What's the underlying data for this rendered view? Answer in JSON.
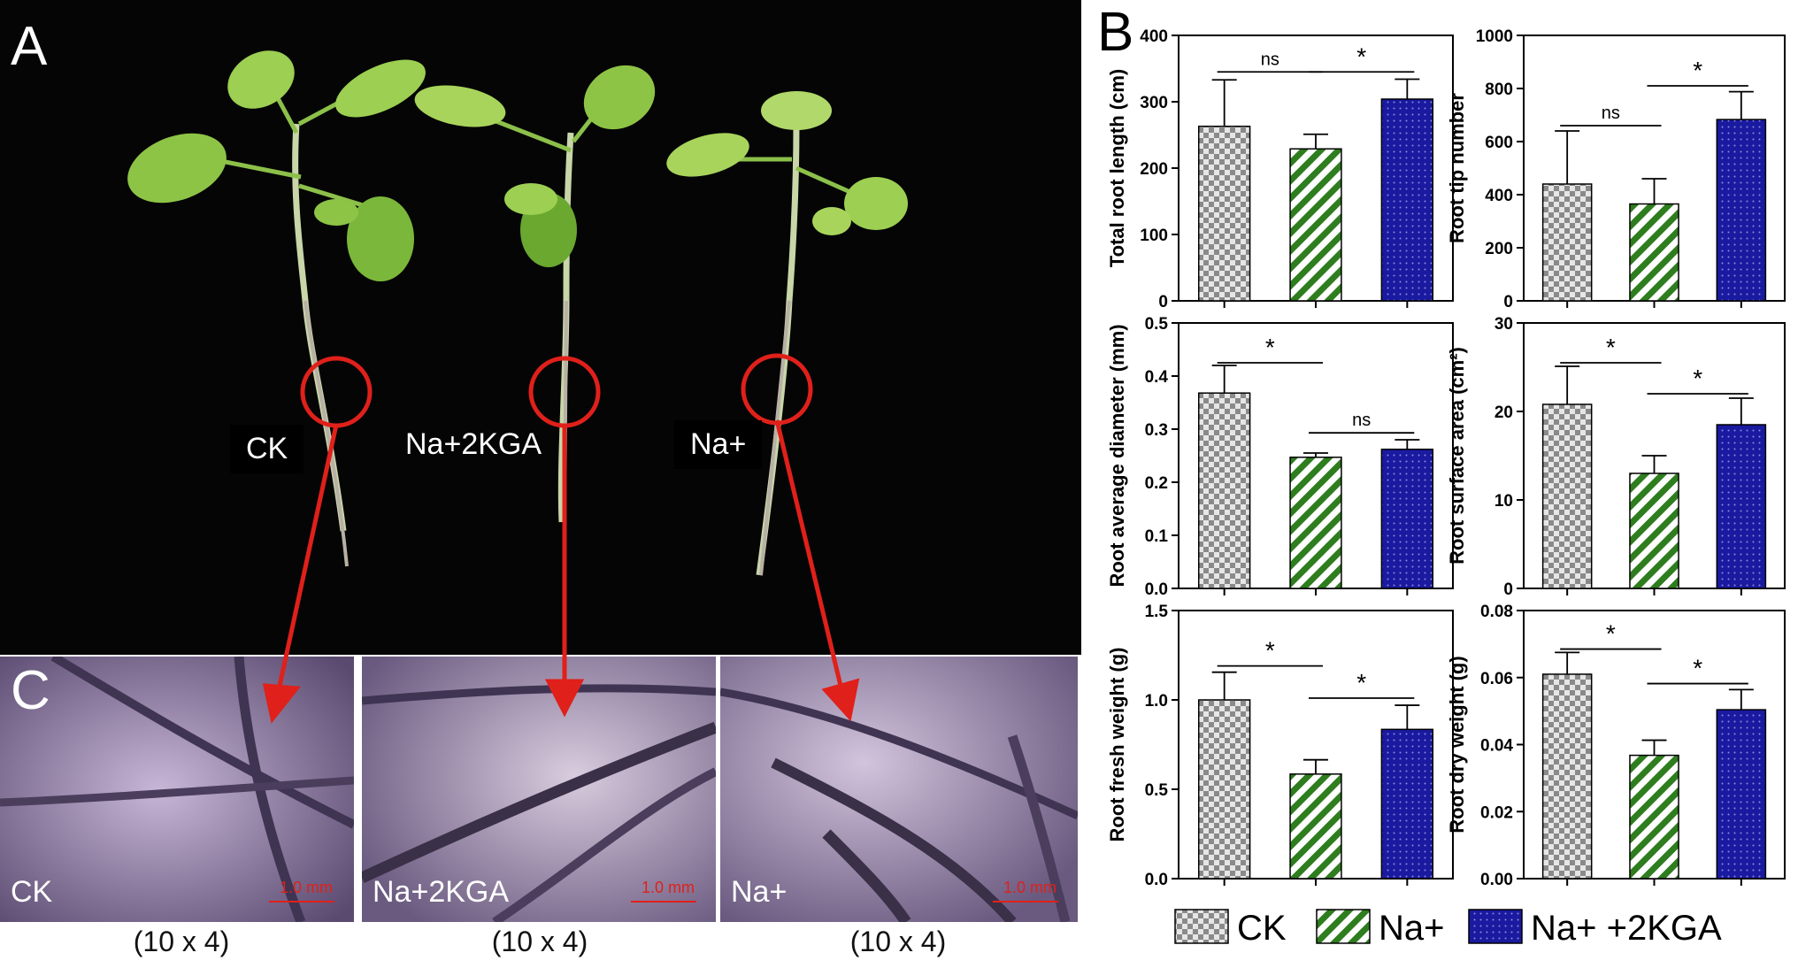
{
  "panel_labels": {
    "a": "A",
    "b": "B",
    "c": "C"
  },
  "plants": [
    "CK",
    "Na+2KGA",
    "Na+"
  ],
  "micro": [
    {
      "label": "CK",
      "scale": "1.0 mm",
      "mag": "(10 x 4)"
    },
    {
      "label": "Na+2KGA",
      "scale": "1.0 mm",
      "mag": "(10 x 4)"
    },
    {
      "label": "Na+",
      "scale": "1.0 mm",
      "mag": "(10 x 4)"
    }
  ],
  "colors": {
    "ck": "#9a9a9a",
    "na": "#2e7d1e",
    "kga": "#1a1aa0",
    "arrow": "#e0201a"
  },
  "legend": [
    "CK",
    "Na+",
    "Na+ +2KGA"
  ],
  "chart_data": [
    {
      "type": "bar",
      "ylabel": "Total root length (cm)",
      "ylim": [
        0,
        400
      ],
      "yticks": [
        0,
        100,
        200,
        300,
        400
      ],
      "tick_labels": [
        "0",
        "100",
        "200",
        "300",
        "400"
      ],
      "categories": [
        "CK",
        "Na+",
        "Na+ +2KGA"
      ],
      "values": [
        263,
        229,
        304
      ],
      "errors": [
        70,
        22,
        30
      ],
      "sig": [
        {
          "from": 0,
          "to": 1,
          "label": "ns",
          "y": 345
        },
        {
          "from": 1,
          "to": 2,
          "label": "*",
          "y": 345
        }
      ]
    },
    {
      "type": "bar",
      "ylabel": "Root tip number",
      "ylim": [
        0,
        1000
      ],
      "yticks": [
        0,
        200,
        400,
        600,
        800,
        1000
      ],
      "tick_labels": [
        "0",
        "200",
        "400",
        "600",
        "800",
        "1000"
      ],
      "categories": [
        "CK",
        "Na+",
        "Na+ +2KGA"
      ],
      "values": [
        440,
        365,
        683
      ],
      "errors": [
        200,
        95,
        105
      ],
      "sig": [
        {
          "from": 0,
          "to": 1,
          "label": "ns",
          "y": 660
        },
        {
          "from": 1,
          "to": 2,
          "label": "*",
          "y": 810
        }
      ]
    },
    {
      "type": "bar",
      "ylabel": "Root average diameter (mm)",
      "ylim": [
        0,
        0.5
      ],
      "yticks": [
        0,
        0.1,
        0.2,
        0.3,
        0.4,
        0.5
      ],
      "tick_labels": [
        "0.0",
        "0.1",
        "0.2",
        "0.3",
        "0.4",
        "0.5"
      ],
      "categories": [
        "CK",
        "Na+",
        "Na+ +2KGA"
      ],
      "values": [
        0.368,
        0.247,
        0.262
      ],
      "errors": [
        0.052,
        0.008,
        0.018
      ],
      "sig": [
        {
          "from": 0,
          "to": 1,
          "label": "*",
          "y": 0.425
        },
        {
          "from": 1,
          "to": 2,
          "label": "ns",
          "y": 0.293
        }
      ]
    },
    {
      "type": "bar",
      "ylabel": "Root surface area (cm²)",
      "ylim": [
        0,
        30
      ],
      "yticks": [
        0,
        10,
        20,
        30
      ],
      "tick_labels": [
        "0",
        "10",
        "20",
        "30"
      ],
      "categories": [
        "CK",
        "Na+",
        "Na+ +2KGA"
      ],
      "values": [
        20.8,
        13.0,
        18.5
      ],
      "errors": [
        4.3,
        2.0,
        3.0
      ],
      "sig": [
        {
          "from": 0,
          "to": 1,
          "label": "*",
          "y": 25.5
        },
        {
          "from": 1,
          "to": 2,
          "label": "*",
          "y": 22.0
        }
      ]
    },
    {
      "type": "bar",
      "ylabel": "Root fresh weight (g)",
      "ylim": [
        0,
        1.5
      ],
      "yticks": [
        0,
        0.5,
        1.0,
        1.5
      ],
      "tick_labels": [
        "0.0",
        "0.5",
        "1.0",
        "1.5"
      ],
      "categories": [
        "CK",
        "Na+",
        "Na+ +2KGA"
      ],
      "values": [
        1.0,
        0.585,
        0.835
      ],
      "errors": [
        0.155,
        0.08,
        0.135
      ],
      "sig": [
        {
          "from": 0,
          "to": 1,
          "label": "*",
          "y": 1.19
        },
        {
          "from": 1,
          "to": 2,
          "label": "*",
          "y": 1.01
        }
      ]
    },
    {
      "type": "bar",
      "ylabel": "Root dry weight (g)",
      "ylim": [
        0,
        0.08
      ],
      "yticks": [
        0,
        0.02,
        0.04,
        0.06,
        0.08
      ],
      "tick_labels": [
        "0.00",
        "0.02",
        "0.04",
        "0.06",
        "0.08"
      ],
      "categories": [
        "CK",
        "Na+",
        "Na+ +2KGA"
      ],
      "values": [
        0.061,
        0.0368,
        0.0504
      ],
      "errors": [
        0.0065,
        0.0045,
        0.006
      ],
      "sig": [
        {
          "from": 0,
          "to": 1,
          "label": "*",
          "y": 0.0685
        },
        {
          "from": 1,
          "to": 2,
          "label": "*",
          "y": 0.0582
        }
      ]
    }
  ]
}
